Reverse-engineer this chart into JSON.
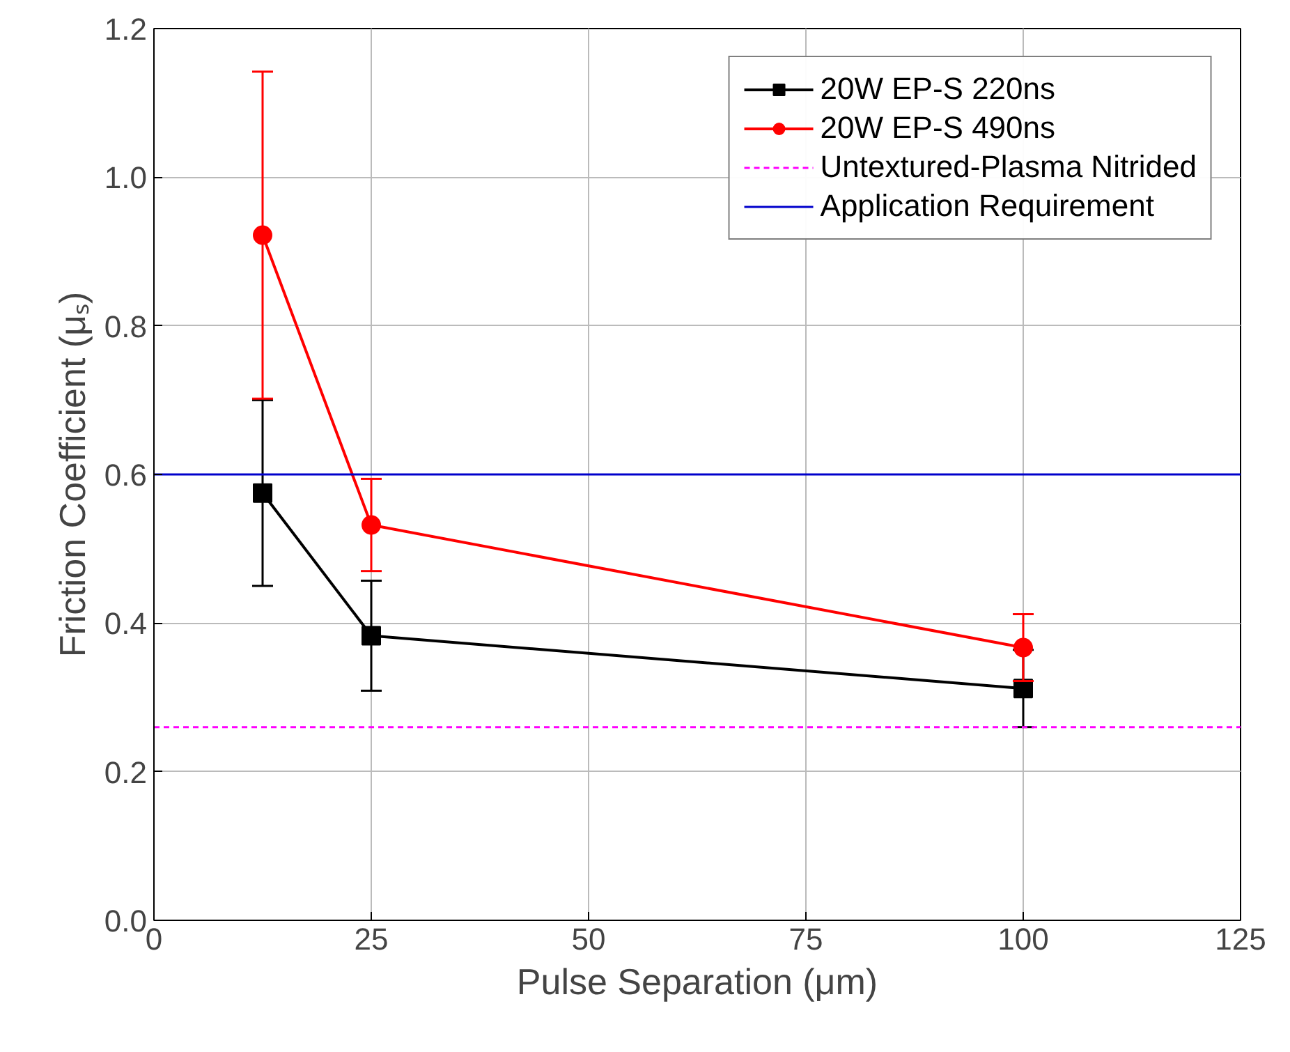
{
  "chart_data": {
    "type": "line",
    "xlabel": "Pulse Separation (μm)",
    "ylabel": "Friction Coefficient (μₛ)",
    "x": [
      12.5,
      25,
      100
    ],
    "series": [
      {
        "name": "20W EP-S 220ns",
        "color": "#000000",
        "marker": "square",
        "values": [
          0.575,
          0.383,
          0.312
        ],
        "errors": [
          0.125,
          0.074,
          0.052
        ]
      },
      {
        "name": "20W EP-S 490ns",
        "color": "#ff0000",
        "marker": "circle",
        "values": [
          0.922,
          0.532,
          0.367
        ],
        "errors": [
          0.22,
          0.062,
          0.045
        ]
      }
    ],
    "ref_lines": [
      {
        "axis": "y",
        "value": 0.26,
        "label": "Untextured-Plasma Nitrided",
        "color": "#ff00ff",
        "line_style": "dashed"
      },
      {
        "axis": "y",
        "value": 0.6,
        "label": "Application Requirement",
        "color": "#0000cc",
        "line_style": "solid"
      }
    ],
    "xlim": [
      0,
      125
    ],
    "ylim": [
      0,
      1.2
    ],
    "xticks": [
      0,
      25,
      50,
      75,
      100,
      125
    ],
    "yticks": [
      {
        "value": 0,
        "label": "0.0"
      },
      0.2,
      0.4,
      0.6,
      0.8,
      {
        "value": 1,
        "label": "1.0"
      },
      1.2
    ],
    "grid": true,
    "legend": "top right",
    "line_style": "solid"
  }
}
